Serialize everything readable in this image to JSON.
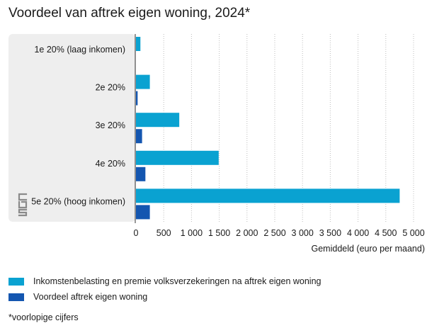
{
  "colors": {
    "series1": "#0aa2d1",
    "series2": "#1456b0",
    "panel": "#eeeeee",
    "grid": "#bdbdbd",
    "axis": "#333333"
  },
  "icons": {
    "logo": "cbs-logo-icon"
  },
  "chart_data": {
    "type": "bar",
    "orientation": "horizontal",
    "title": "Voordeel van aftrek eigen woning, 2024*",
    "categories": [
      "1e 20% (laag inkomen)",
      "2e 20%",
      "3e 20%",
      "4e 20%",
      "5e 20% (hoog inkomen)"
    ],
    "series": [
      {
        "name": "Inkomstenbelasting en premie volksverzekeringen na aftrek eigen woning",
        "values": [
          80,
          250,
          780,
          1490,
          4750
        ]
      },
      {
        "name": "Voordeel aftrek eigen woning",
        "values": [
          0,
          30,
          110,
          170,
          250
        ]
      }
    ],
    "xlabel": "Gemiddeld (euro per maand)",
    "xlim": [
      0,
      5000
    ],
    "xticks": [
      "0",
      "500",
      "1 000",
      "1 500",
      "2 000",
      "2 500",
      "3 000",
      "3 500",
      "4 000",
      "4 500",
      "5 000"
    ],
    "grid": "vertical-dotted",
    "legend_position": "bottom"
  },
  "footnote": "*voorlopige cijfers"
}
